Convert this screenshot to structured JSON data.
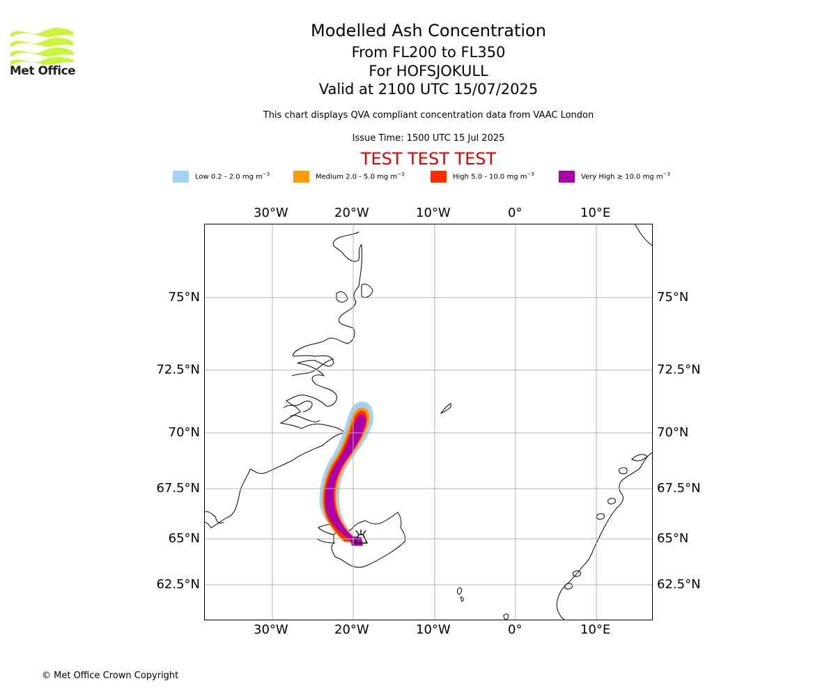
{
  "header": {
    "title": "Modelled Ash Concentration",
    "levels": "From FL200 to FL350",
    "volcano": "For HOFSJOKULL",
    "valid": "Valid at 2100 UTC 15/07/2025",
    "subtitle": "This chart displays QVA compliant concentration data from VAAC London",
    "issue_time": "Issue Time: 1500 UTC 15 Jul 2025",
    "test_banner": "TEST TEST TEST"
  },
  "logo": {
    "name": "Met Office",
    "icon": "met-office-wave-logo",
    "color": "#c8f53a"
  },
  "legend": [
    {
      "label": "Low 0.2 - 2.0 mg m",
      "exp": "−3",
      "color": "#a0d2fa"
    },
    {
      "label": "Medium 2.0 - 5.0 mg m",
      "exp": "−3",
      "color": "#ff9a00"
    },
    {
      "label": "High 5.0 - 10.0 mg m",
      "exp": "−3",
      "color": "#ff2c00"
    },
    {
      "label": "Very High  ≥  10.0 mg m",
      "exp": "−3",
      "color": "#aa00aa"
    }
  ],
  "axes": {
    "lon_ticks": [
      "30°W",
      "20°W",
      "10°W",
      "0°",
      "10°E"
    ],
    "lat_ticks": [
      "75°N",
      "72.5°N",
      "70°N",
      "67.5°N",
      "65°N",
      "62.5°N"
    ]
  },
  "footer": {
    "copyright": "© Met Office Crown Copyright"
  },
  "colors": {
    "grid": "#b0b0b0",
    "coast": "#000000",
    "test_banner": "#dd0000"
  }
}
